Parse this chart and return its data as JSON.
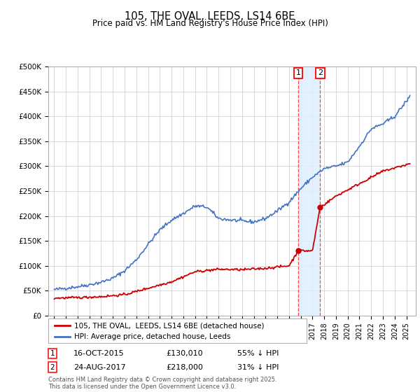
{
  "title": "105, THE OVAL, LEEDS, LS14 6BE",
  "subtitle": "Price paid vs. HM Land Registry's House Price Index (HPI)",
  "ylabel_ticks": [
    "£0",
    "£50K",
    "£100K",
    "£150K",
    "£200K",
    "£250K",
    "£300K",
    "£350K",
    "£400K",
    "£450K",
    "£500K"
  ],
  "ytick_values": [
    0,
    50000,
    100000,
    150000,
    200000,
    250000,
    300000,
    350000,
    400000,
    450000,
    500000
  ],
  "xlim": [
    1994.5,
    2025.8
  ],
  "ylim": [
    0,
    500000
  ],
  "legend_line1": "105, THE OVAL,  LEEDS, LS14 6BE (detached house)",
  "legend_line2": "HPI: Average price, detached house, Leeds",
  "sale1_date": "16-OCT-2015",
  "sale1_price": "£130,010",
  "sale1_note": "55% ↓ HPI",
  "sale2_date": "24-AUG-2017",
  "sale2_price": "£218,000",
  "sale2_note": "31% ↓ HPI",
  "footnote": "Contains HM Land Registry data © Crown copyright and database right 2025.\nThis data is licensed under the Open Government Licence v3.0.",
  "sale1_x": 2015.79,
  "sale2_x": 2017.65,
  "sale1_y": 130010,
  "sale2_y": 218000,
  "hpi_color": "#4472C4",
  "price_color": "#CC0000",
  "vline_color": "#FF4444",
  "shade_color": "#DDEEFF",
  "background_color": "#FFFFFF",
  "grid_color": "#CCCCCC",
  "hpi_base_years": [
    1995,
    1996,
    1997,
    1998,
    1999,
    2000,
    2001,
    2002,
    2003,
    2004,
    2005,
    2006,
    2007,
    2008,
    2009,
    2010,
    2011,
    2012,
    2013,
    2014,
    2015,
    2016,
    2017,
    2018,
    2019,
    2020,
    2021,
    2022,
    2023,
    2024,
    2025.3
  ],
  "hpi_base_vals": [
    52000,
    55000,
    58000,
    62000,
    67000,
    75000,
    90000,
    112000,
    143000,
    172000,
    192000,
    205000,
    220000,
    218000,
    195000,
    192000,
    190000,
    188000,
    195000,
    210000,
    228000,
    255000,
    278000,
    295000,
    300000,
    308000,
    340000,
    375000,
    385000,
    400000,
    440000
  ],
  "price_base_years": [
    1995,
    1997,
    1999,
    2001,
    2003,
    2005,
    2007,
    2009,
    2011,
    2013,
    2015.0,
    2015.79,
    2015.85,
    2017.0,
    2017.65,
    2017.7,
    2019,
    2021,
    2023,
    2025.3
  ],
  "price_base_vals": [
    35000,
    36000,
    38000,
    42000,
    55000,
    68000,
    88000,
    93000,
    92000,
    95000,
    100000,
    130010,
    130010,
    130010,
    218000,
    218000,
    240000,
    265000,
    290000,
    305000
  ]
}
